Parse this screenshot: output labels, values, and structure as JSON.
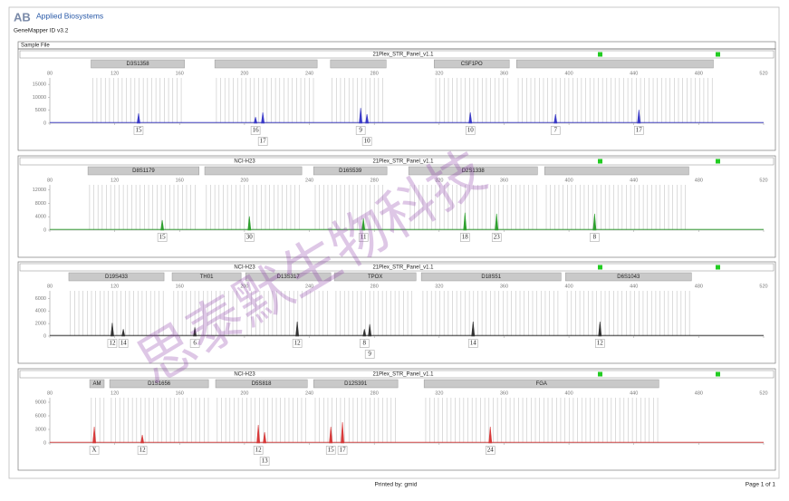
{
  "header": {
    "brand": "Applied Biosystems",
    "software": "GeneMapper ID v3.2",
    "sample_file_label": "Sample File"
  },
  "watermark": "思泰默生物科技",
  "footer": {
    "printed_by": "Printed by: gmid",
    "page": "Page 1 of 1"
  },
  "chart_data": [
    {
      "type": "peaks",
      "sample": null,
      "panel": "21Plex_STR_Panel_v1.1",
      "color": "#3a3ac8",
      "markers": [
        {
          "name": "D3S1358",
          "range": [
            105.4,
            163
          ]
        },
        {
          "name": null,
          "range": [
            181.7,
            244.8
          ]
        },
        {
          "name": null,
          "range": [
            253,
            287.3
          ]
        },
        {
          "name": "CSF1PO",
          "range": [
            316.9,
            363.2
          ]
        },
        {
          "name": null,
          "range": [
            367.7,
            489
          ]
        }
      ],
      "xlim": [
        80,
        520
      ],
      "xticks": [
        80,
        120,
        160,
        200,
        240,
        280,
        320,
        360,
        400,
        440,
        480,
        520
      ],
      "ylim": [
        0,
        17500
      ],
      "yticks": [
        0,
        5000,
        10000,
        15000
      ],
      "x": [
        134.7,
        206.8,
        211.3,
        271.6,
        275.5,
        339.2,
        391.7,
        443.1
      ],
      "values": [
        3800,
        2400,
        4200,
        5900,
        3500,
        4200,
        3500,
        5200
      ],
      "labels": [
        "15",
        "16",
        "17",
        "9",
        "10",
        "10",
        "7",
        "17"
      ]
    },
    {
      "type": "peaks",
      "sample": "NCI-H23",
      "panel": "21Plex_STR_Panel_v1.1",
      "color": "#2ea02e",
      "markers": [
        {
          "name": "D8S1179",
          "range": [
            103.5,
            172
          ]
        },
        {
          "name": null,
          "range": [
            175.5,
            235.3
          ]
        },
        {
          "name": "D16S539",
          "range": [
            242.6,
            287.8
          ]
        },
        {
          "name": "D2S1338",
          "range": [
            301.2,
            380.6
          ]
        },
        {
          "name": null,
          "range": [
            385,
            473.9
          ]
        }
      ],
      "xlim": [
        80,
        520
      ],
      "xticks": [
        80,
        120,
        160,
        200,
        240,
        280,
        320,
        360,
        400,
        440,
        480,
        520
      ],
      "ylim": [
        0,
        13500
      ],
      "yticks": [
        0,
        4000,
        8000,
        12000
      ],
      "x": [
        149.3,
        203,
        273.3,
        335.9,
        355.4,
        415.8
      ],
      "values": [
        3000,
        4100,
        3500,
        5200,
        4900,
        4900
      ],
      "labels": [
        "15",
        "30",
        "11",
        "18",
        "23",
        "8"
      ]
    },
    {
      "type": "peaks",
      "sample": "NCI-H23",
      "panel": "21Plex_STR_Panel_v1.1",
      "color": "#333333",
      "markers": [
        {
          "name": "D19S433",
          "range": [
            91.7,
            150.4
          ]
        },
        {
          "name": "TH01",
          "range": [
            155.4,
            197.9
          ]
        },
        {
          "name": "D13S317",
          "range": [
            200.7,
            253.2
          ]
        },
        {
          "name": "TPOX",
          "range": [
            255.4,
            305.7
          ]
        },
        {
          "name": "D18S51",
          "range": [
            309,
            395.1
          ]
        },
        {
          "name": "D6S1043",
          "range": [
            397.9,
            475.5
          ]
        }
      ],
      "xlim": [
        80,
        520
      ],
      "xticks": [
        80,
        120,
        160,
        200,
        240,
        280,
        320,
        360,
        400,
        440,
        480,
        520
      ],
      "ylim": [
        0,
        7200
      ],
      "yticks": [
        0,
        2000,
        4000,
        6000
      ],
      "x": [
        118.5,
        125.3,
        169.4,
        232.5,
        273.9,
        277.2,
        340.9,
        419.1
      ],
      "values": [
        2100,
        1100,
        1400,
        2300,
        1100,
        1900,
        2300,
        2300
      ],
      "labels": [
        "12",
        "14",
        "6",
        "12",
        "8",
        "9",
        "14",
        "12"
      ]
    },
    {
      "type": "peaks",
      "sample": "NCI-H23",
      "panel": "21Plex_STR_Panel_v1.1",
      "color": "#d83a3a",
      "markers": [
        {
          "name": "AM",
          "range": [
            104.6,
            113.5
          ]
        },
        {
          "name": "D1S1656",
          "range": [
            116.9,
            177.8
          ]
        },
        {
          "name": "D5S818",
          "range": [
            182.2,
            238.7
          ]
        },
        {
          "name": "D12S391",
          "range": [
            242.6,
            294.5
          ]
        },
        {
          "name": "FGA",
          "range": [
            310.7,
            455.4
          ]
        }
      ],
      "xlim": [
        80,
        520
      ],
      "xticks": [
        80,
        120,
        160,
        200,
        240,
        280,
        320,
        360,
        400,
        440,
        480,
        520
      ],
      "ylim": [
        0,
        10000
      ],
      "yticks": [
        0,
        3000,
        6000,
        9000
      ],
      "x": [
        107.4,
        137,
        208.5,
        212.4,
        253.2,
        260.4,
        351.5
      ],
      "values": [
        3600,
        1800,
        4000,
        2400,
        3600,
        4600,
        3600
      ],
      "labels": [
        "X",
        "12",
        "12",
        "13",
        "15",
        "17",
        "24"
      ]
    }
  ]
}
